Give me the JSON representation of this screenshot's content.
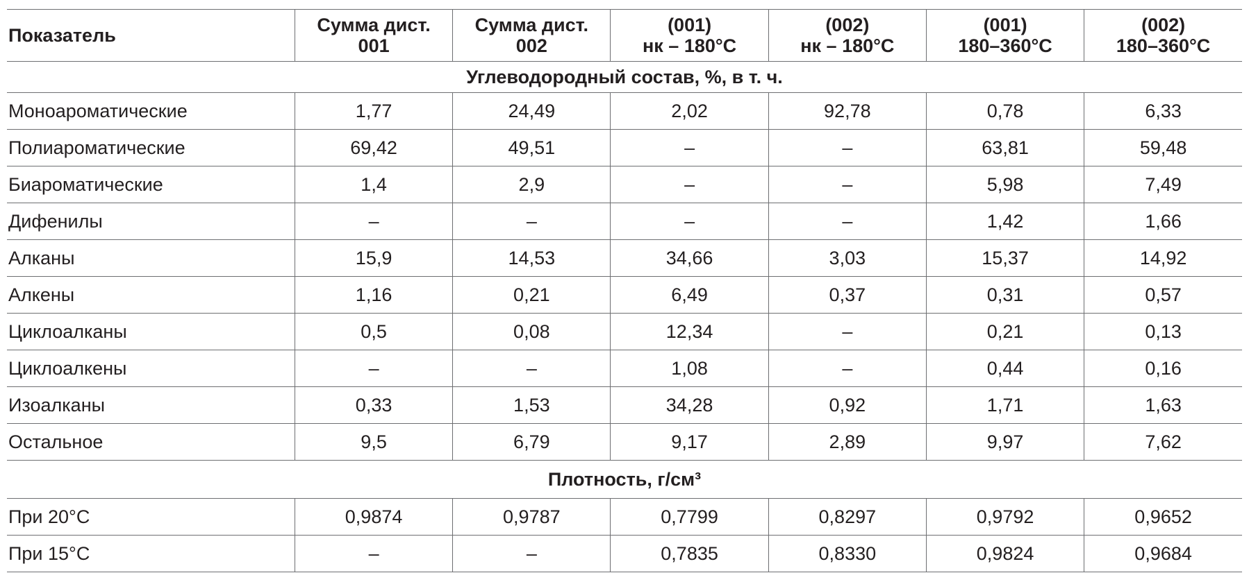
{
  "table": {
    "headers": [
      "Показатель",
      "Сумма дист.\n001",
      "Сумма дист.\n002",
      "(001)\nнк – 180°C",
      "(002)\nнк – 180°C",
      "(001)\n180–360°C",
      "(002)\n180–360°C"
    ],
    "section1": {
      "title": "Углеводородный состав, %,  в т. ч.",
      "rows": [
        [
          "Моноароматические",
          "1,77",
          "24,49",
          "2,02",
          "92,78",
          "0,78",
          "6,33"
        ],
        [
          "Полиароматические",
          "69,42",
          "49,51",
          "–",
          "–",
          "63,81",
          "59,48"
        ],
        [
          "Биароматические",
          "1,4",
          "2,9",
          "–",
          "–",
          "5,98",
          "7,49"
        ],
        [
          "Дифенилы",
          "–",
          "–",
          "–",
          "–",
          "1,42",
          "1,66"
        ],
        [
          "Алканы",
          "15,9",
          "14,53",
          "34,66",
          "3,03",
          "15,37",
          "14,92"
        ],
        [
          "Алкены",
          "1,16",
          "0,21",
          "6,49",
          "0,37",
          "0,31",
          "0,57"
        ],
        [
          "Циклоалканы",
          "0,5",
          "0,08",
          "12,34",
          "–",
          "0,21",
          "0,13"
        ],
        [
          "Циклоалкены",
          "–",
          "–",
          "1,08",
          "–",
          "0,44",
          "0,16"
        ],
        [
          "Изоалканы",
          "0,33",
          "1,53",
          "34,28",
          "0,92",
          "1,71",
          "1,63"
        ],
        [
          "Остальное",
          "9,5",
          "6,79",
          "9,17",
          "2,89",
          "9,97",
          "7,62"
        ]
      ]
    },
    "section2": {
      "title": "Плотность, г/см³",
      "rows": [
        [
          "При 20°C",
          "0,9874",
          "0,9787",
          "0,7799",
          "0,8297",
          "0,9792",
          "0,9652"
        ],
        [
          "При 15°C",
          "–",
          "–",
          "0,7835",
          "0,8330",
          "0,9824",
          "0,9684"
        ]
      ]
    }
  }
}
